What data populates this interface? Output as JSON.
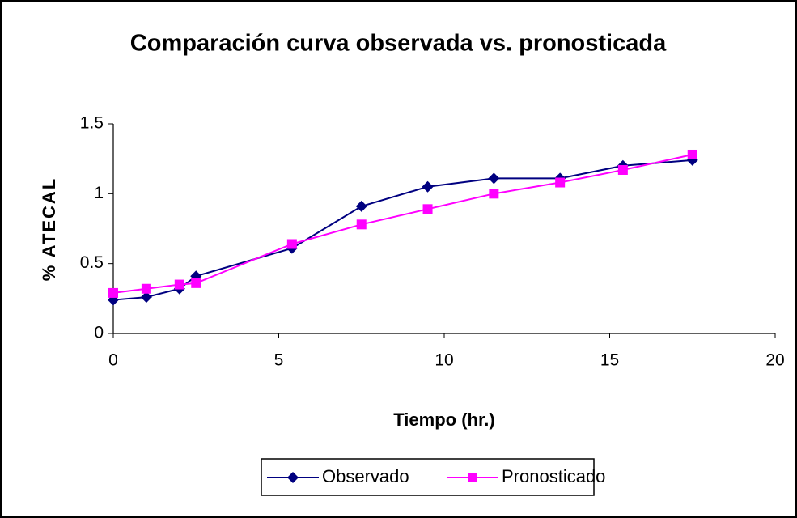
{
  "chart_data": {
    "type": "line",
    "title": "Comparación curva observada vs. pronosticada",
    "x_label": "Tiempo (hr.)",
    "y_label": "% ATECAL",
    "xlim": [
      0,
      20
    ],
    "xticks": [
      0,
      5,
      10,
      15,
      20
    ],
    "ylim": [
      0,
      1.5
    ],
    "yticks": [
      0,
      0.5,
      1,
      1.5
    ],
    "grid": false,
    "legend": "bottom",
    "series": [
      {
        "name": "Observado",
        "color": "#000080",
        "marker": "diamond",
        "x": [
          0,
          1,
          2,
          2.5,
          5.4,
          7.5,
          9.5,
          11.5,
          13.5,
          15.4,
          17.5
        ],
        "values": [
          0.24,
          0.26,
          0.32,
          0.41,
          0.61,
          0.91,
          1.05,
          1.11,
          1.11,
          1.2,
          1.24
        ]
      },
      {
        "name": "Pronosticado",
        "color": "#ff00ff",
        "marker": "square",
        "x": [
          0,
          1,
          2,
          2.5,
          5.4,
          7.5,
          9.5,
          11.5,
          13.5,
          15.4,
          17.5
        ],
        "values": [
          0.29,
          0.32,
          0.35,
          0.36,
          0.64,
          0.78,
          0.89,
          1.0,
          1.08,
          1.17,
          1.28
        ]
      }
    ]
  }
}
